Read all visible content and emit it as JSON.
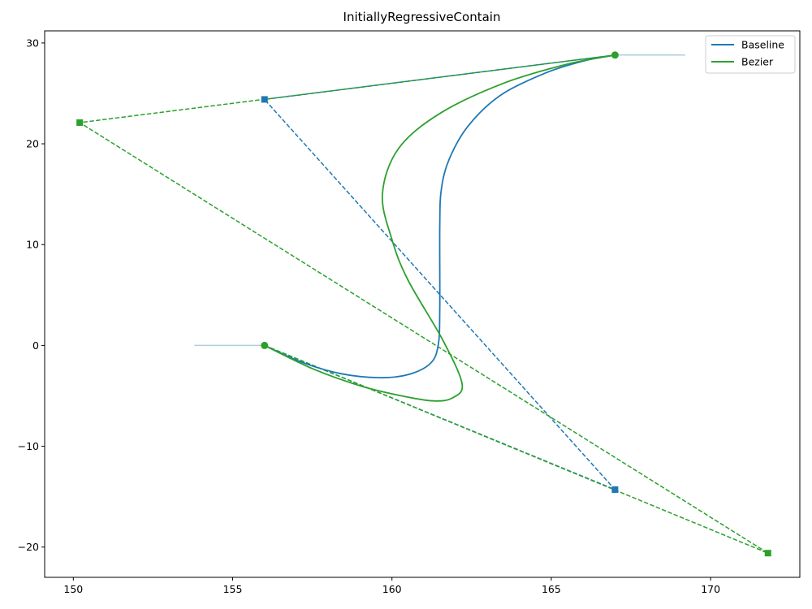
{
  "chart_data": {
    "type": "line",
    "title": "InitiallyRegressiveContain",
    "xlabel": "",
    "ylabel": "",
    "xlim": [
      149.1,
      172.8
    ],
    "ylim": [
      -23.0,
      31.2
    ],
    "xticks": [
      150,
      155,
      160,
      165,
      170
    ],
    "yticks": [
      -20,
      -10,
      0,
      10,
      20,
      30
    ],
    "grid": false,
    "legend_position": "top-right",
    "legend": [
      "Baseline",
      "Bezier"
    ],
    "colors": {
      "baseline": "#1f77b4",
      "bezier": "#2ca02c",
      "tangent": "#a9cfe0"
    },
    "tangent_lines": [
      {
        "x": [
          153.8,
          156.0
        ],
        "y": [
          0.0,
          0.0
        ]
      },
      {
        "x": [
          167.0,
          169.2
        ],
        "y": [
          28.8,
          28.8
        ]
      }
    ],
    "series": [
      {
        "name": "Baseline",
        "color": "#1f77b4",
        "x": [
          156.0,
          157.2,
          158.4,
          159.6,
          160.5,
          161.2,
          161.45,
          161.5,
          161.5,
          161.55,
          161.8,
          162.4,
          163.4,
          164.8,
          166.0,
          167.0
        ],
        "y": [
          0.0,
          -1.7,
          -2.8,
          -3.2,
          -2.9,
          -1.8,
          0.0,
          3.5,
          11.8,
          15.5,
          18.5,
          21.8,
          24.8,
          27.0,
          28.2,
          28.8
        ]
      },
      {
        "name": "Bezier",
        "color": "#2ca02c",
        "x": [
          156.0,
          157.5,
          159.0,
          160.3,
          161.3,
          161.9,
          162.2,
          161.6,
          160.5,
          160.0,
          159.7,
          160.2,
          161.5,
          163.5,
          165.5,
          167.0
        ],
        "y": [
          0.0,
          -2.3,
          -4.0,
          -5.0,
          -5.5,
          -5.2,
          -3.8,
          0.5,
          6.5,
          10.5,
          15.0,
          19.5,
          23.0,
          26.0,
          27.9,
          28.8
        ]
      },
      {
        "name": "Baseline control polygon",
        "style": "dashed",
        "color": "#1f77b4",
        "x": [
          156.0,
          167.0,
          156.0,
          167.0
        ],
        "y": [
          0.0,
          -14.3,
          24.4,
          28.8
        ]
      },
      {
        "name": "Bezier control polygon",
        "style": "dashed",
        "color": "#2ca02c",
        "x": [
          156.0,
          171.8,
          150.2,
          167.0
        ],
        "y": [
          0.0,
          -20.6,
          22.1,
          28.8
        ]
      }
    ],
    "markers": {
      "endpoints": [
        [
          156.0,
          0.0
        ],
        [
          167.0,
          28.8
        ]
      ],
      "baseline_controls": [
        [
          167.0,
          -14.3
        ],
        [
          156.0,
          24.4
        ]
      ],
      "bezier_controls": [
        [
          171.8,
          -20.6
        ],
        [
          150.2,
          22.1
        ]
      ]
    }
  }
}
